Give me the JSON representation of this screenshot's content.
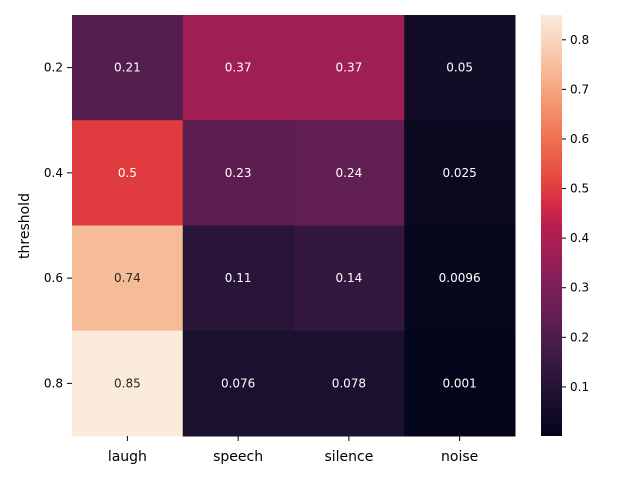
{
  "chart_data": {
    "type": "heatmap",
    "title": "",
    "xlabel": "",
    "ylabel": "threshold",
    "x_categories": [
      "laugh",
      "speech",
      "silence",
      "noise"
    ],
    "y_categories": [
      "0.2",
      "0.4",
      "0.6",
      "0.8"
    ],
    "values": [
      [
        0.21,
        0.37,
        0.37,
        0.05
      ],
      [
        0.5,
        0.23,
        0.24,
        0.025
      ],
      [
        0.74,
        0.11,
        0.14,
        0.0096
      ],
      [
        0.85,
        0.076,
        0.078,
        0.001
      ]
    ],
    "annotations": [
      [
        "0.21",
        "0.37",
        "0.37",
        "0.05"
      ],
      [
        "0.5",
        "0.23",
        "0.24",
        "0.025"
      ],
      [
        "0.74",
        "0.11",
        "0.14",
        "0.0096"
      ],
      [
        "0.85",
        "0.076",
        "0.078",
        "0.001"
      ]
    ],
    "colormap": "rocket",
    "colorbar": {
      "range": [
        0.001,
        0.85
      ],
      "ticks": [
        0.1,
        0.2,
        0.3,
        0.4,
        0.5,
        0.6,
        0.7,
        0.8
      ],
      "tick_labels": [
        "0.1",
        "0.2",
        "0.3",
        "0.4",
        "0.5",
        "0.6",
        "0.7",
        "0.8"
      ]
    },
    "grid": false,
    "legend": "colorbar-right"
  }
}
